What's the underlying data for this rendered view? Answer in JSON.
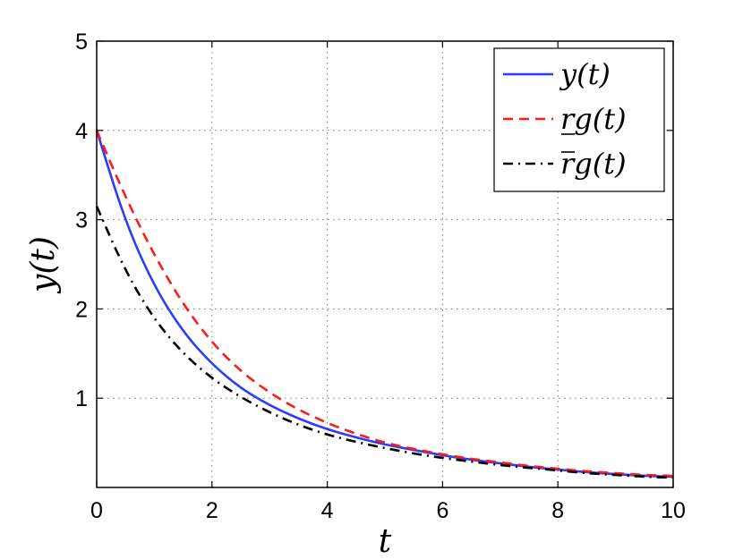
{
  "chart_data": {
    "type": "line",
    "xlabel": "t",
    "ylabel": "y(t)",
    "xlim": [
      0,
      10
    ],
    "ylim": [
      0,
      5
    ],
    "xticks": [
      0,
      2,
      4,
      6,
      8,
      10
    ],
    "yticks": [
      1,
      2,
      3,
      4,
      5
    ],
    "grid": true,
    "legend_position": "top-right",
    "x": [
      0,
      0.5,
      1,
      1.5,
      2,
      2.5,
      3,
      3.5,
      4,
      4.5,
      5,
      5.5,
      6,
      6.5,
      7,
      7.5,
      8,
      8.5,
      9,
      9.5,
      10
    ],
    "series": [
      {
        "name": "y(t)",
        "color": "#2b3bff",
        "style": "solid",
        "values": [
          4.0,
          2.97,
          2.25,
          1.74,
          1.38,
          1.11,
          0.92,
          0.77,
          0.65,
          0.56,
          0.48,
          0.42,
          0.36,
          0.31,
          0.27,
          0.23,
          0.2,
          0.17,
          0.15,
          0.13,
          0.12
        ]
      },
      {
        "name": "rg(t)",
        "name_decoration": "underline-r",
        "color": "#ff1a1a",
        "style": "dashed",
        "values": [
          4.0,
          3.25,
          2.6,
          2.05,
          1.62,
          1.3,
          1.06,
          0.87,
          0.72,
          0.6,
          0.5,
          0.43,
          0.37,
          0.32,
          0.28,
          0.24,
          0.21,
          0.18,
          0.16,
          0.14,
          0.13
        ]
      },
      {
        "name": "rg(t)",
        "name_decoration": "overline-r",
        "color": "#000000",
        "style": "dashdot",
        "values": [
          3.15,
          2.42,
          1.88,
          1.5,
          1.22,
          1.01,
          0.84,
          0.7,
          0.59,
          0.51,
          0.44,
          0.38,
          0.33,
          0.29,
          0.25,
          0.22,
          0.19,
          0.16,
          0.14,
          0.12,
          0.11
        ]
      }
    ]
  }
}
